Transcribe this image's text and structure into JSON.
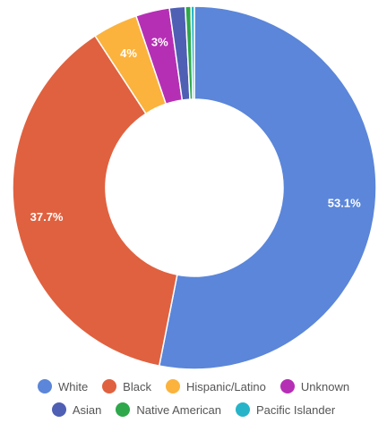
{
  "chart_data": {
    "type": "pie",
    "title": "",
    "donut": true,
    "slices": [
      {
        "label": "White",
        "value": 53.1,
        "display": "53.1%",
        "color": "#5b86d9"
      },
      {
        "label": "Black",
        "value": 37.7,
        "display": "37.7%",
        "color": "#e0613f"
      },
      {
        "label": "Hispanic/Latino",
        "value": 4.0,
        "display": "4%",
        "color": "#fbb33d"
      },
      {
        "label": "Unknown",
        "value": 3.0,
        "display": "3%",
        "color": "#b52fb5"
      },
      {
        "label": "Asian",
        "value": 1.4,
        "display": "",
        "color": "#4f5fb3"
      },
      {
        "label": "Native American",
        "value": 0.5,
        "display": "",
        "color": "#2ea84a"
      },
      {
        "label": "Pacific Islander",
        "value": 0.3,
        "display": "",
        "color": "#27b4c9"
      }
    ],
    "legend_position": "bottom"
  }
}
